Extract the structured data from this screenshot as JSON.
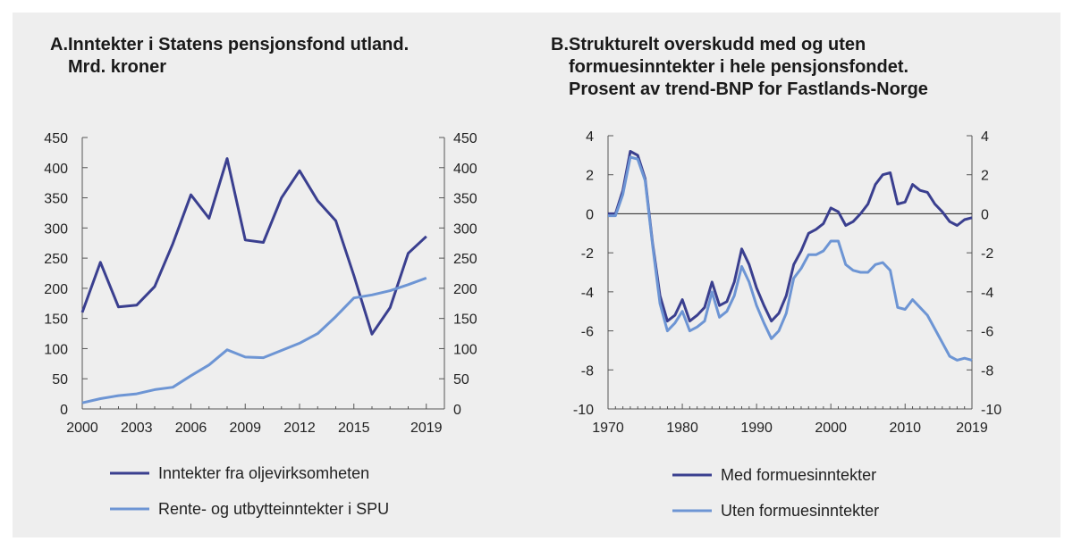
{
  "chart_data": [
    {
      "type": "line",
      "panel_label": "A.",
      "title_lines": [
        "Inntekter i Statens pensjonsfond utland.",
        "Mrd. kroner"
      ],
      "x": [
        2000,
        2001,
        2002,
        2003,
        2004,
        2005,
        2006,
        2007,
        2008,
        2009,
        2010,
        2011,
        2012,
        2013,
        2014,
        2015,
        2016,
        2017,
        2018,
        2019
      ],
      "xlim": [
        2000,
        2020
      ],
      "ylim": [
        0,
        450
      ],
      "x_ticks": [
        2000,
        2003,
        2006,
        2009,
        2012,
        2015,
        2019
      ],
      "y_ticks": [
        0,
        50,
        100,
        150,
        200,
        250,
        300,
        350,
        400,
        450
      ],
      "y_axis_right": true,
      "grid": false,
      "legend_position": "bottom",
      "series": [
        {
          "name": "Inntekter fra oljevirksomheten",
          "color": "#3a3f8f",
          "values": [
            160,
            243,
            169,
            172,
            203,
            274,
            355,
            316,
            415,
            280,
            276,
            350,
            395,
            345,
            312,
            221,
            124,
            168,
            258,
            286
          ]
        },
        {
          "name": "Rente- og utbytteinntekter i SPU",
          "color": "#6d95d4",
          "values": [
            10,
            17,
            22,
            25,
            32,
            36,
            55,
            73,
            98,
            86,
            85,
            97,
            109,
            125,
            153,
            184,
            189,
            196,
            206,
            217
          ]
        }
      ]
    },
    {
      "type": "line",
      "panel_label": "B.",
      "title_lines": [
        "Strukturelt overskudd med og uten",
        "formuesinntekter i hele pensjonsfondet.",
        "Prosent av trend-BNP for Fastlands-Norge"
      ],
      "x": [
        1970,
        1971,
        1972,
        1973,
        1974,
        1975,
        1976,
        1977,
        1978,
        1979,
        1980,
        1981,
        1982,
        1983,
        1984,
        1985,
        1986,
        1987,
        1988,
        1989,
        1990,
        1991,
        1992,
        1993,
        1994,
        1995,
        1996,
        1997,
        1998,
        1999,
        2000,
        2001,
        2002,
        2003,
        2004,
        2005,
        2006,
        2007,
        2008,
        2009,
        2010,
        2011,
        2012,
        2013,
        2014,
        2015,
        2016,
        2017,
        2018,
        2019
      ],
      "xlim": [
        1970,
        2019
      ],
      "ylim": [
        -10,
        4
      ],
      "x_ticks": [
        1970,
        1980,
        1990,
        2000,
        2010,
        2019
      ],
      "y_ticks": [
        -10,
        -8,
        -6,
        -4,
        -2,
        0,
        2,
        4
      ],
      "y_axis_right": true,
      "zero_line": true,
      "grid": false,
      "legend_position": "bottom",
      "series": [
        {
          "name": "Med formuesinntekter",
          "color": "#3a3f8f",
          "values": [
            0,
            0,
            1.2,
            3.2,
            3.0,
            1.8,
            -1.5,
            -4.2,
            -5.5,
            -5.2,
            -4.4,
            -5.5,
            -5.2,
            -4.8,
            -3.5,
            -4.7,
            -4.5,
            -3.5,
            -1.8,
            -2.6,
            -3.8,
            -4.7,
            -5.5,
            -5.1,
            -4.2,
            -2.6,
            -1.9,
            -1.0,
            -0.8,
            -0.5,
            0.3,
            0.1,
            -0.6,
            -0.4,
            0.0,
            0.5,
            1.5,
            2.0,
            2.1,
            0.5,
            0.6,
            1.5,
            1.2,
            1.1,
            0.5,
            0.1,
            -0.4,
            -0.6,
            -0.3,
            -0.2
          ]
        },
        {
          "name": "Uten formuesinntekter",
          "color": "#6d95d4",
          "values": [
            -0.1,
            -0.1,
            1.0,
            2.9,
            2.8,
            1.7,
            -1.6,
            -4.6,
            -6.0,
            -5.6,
            -5.0,
            -6.0,
            -5.8,
            -5.5,
            -4.0,
            -5.3,
            -5.0,
            -4.2,
            -2.7,
            -3.5,
            -4.7,
            -5.6,
            -6.4,
            -6.0,
            -5.1,
            -3.3,
            -2.8,
            -2.1,
            -2.1,
            -1.9,
            -1.4,
            -1.4,
            -2.6,
            -2.9,
            -3.0,
            -3.0,
            -2.6,
            -2.5,
            -2.9,
            -4.8,
            -4.9,
            -4.4,
            -4.8,
            -5.2,
            -5.9,
            -6.6,
            -7.3,
            -7.5,
            -7.4,
            -7.5
          ]
        }
      ]
    }
  ]
}
